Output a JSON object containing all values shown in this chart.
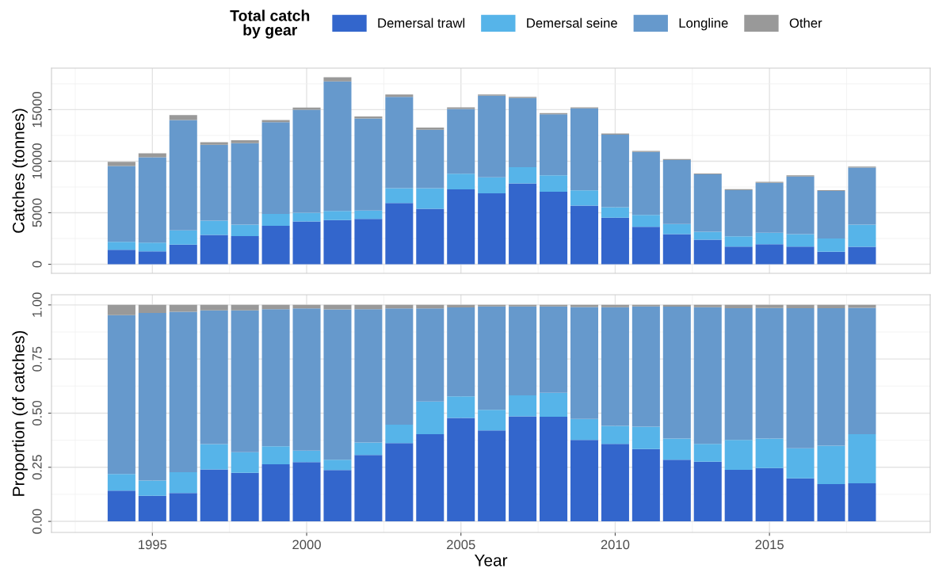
{
  "chart_data": [
    {
      "type": "bar",
      "stacked": true,
      "ylabel": "Catches (tonnes)",
      "legend_title": "Total catch\nby gear",
      "legend": "top",
      "grid": true,
      "tick_labels": "y",
      "x": [
        1994,
        1995,
        1996,
        1997,
        1998,
        1999,
        2000,
        2001,
        2002,
        2003,
        2004,
        2005,
        2006,
        2007,
        2008,
        2009,
        2010,
        2011,
        2012,
        2013,
        2014,
        2015,
        2016,
        2017,
        2018
      ],
      "xlim": [
        1991.73,
        2020.21
      ],
      "xticks": [
        1995,
        2000,
        2005,
        2010,
        2015
      ],
      "ylim": [
        -880,
        19030
      ],
      "yticks": [
        0,
        5000,
        10000,
        15000
      ],
      "series": [
        {
          "name": "Demersal trawl",
          "color": "#3366cc",
          "values": [
            1410,
            1260,
            1910,
            2850,
            2740,
            3740,
            4150,
            4290,
            4410,
            5940,
            5380,
            7260,
            6880,
            7840,
            7030,
            5690,
            4520,
            3640,
            2920,
            2390,
            1720,
            1950,
            1720,
            1220,
            1690
          ]
        },
        {
          "name": "Demersal seine",
          "color": "#56b4e9",
          "values": [
            770,
            830,
            1380,
            1390,
            1110,
            1140,
            850,
            890,
            800,
            1440,
            2000,
            1520,
            1570,
            1580,
            1600,
            1480,
            1020,
            1140,
            990,
            760,
            990,
            1110,
            1200,
            1290,
            2160
          ]
        },
        {
          "name": "Longline",
          "color": "#6699cc",
          "values": [
            7350,
            8290,
            10710,
            7350,
            7890,
            8910,
            10000,
            12560,
            8940,
            8860,
            5680,
            6290,
            7910,
            6700,
            5920,
            7960,
            7030,
            6120,
            6210,
            5570,
            4490,
            4840,
            5590,
            4600,
            5540
          ]
        },
        {
          "name": "Other",
          "color": "#999999",
          "values": [
            410,
            380,
            470,
            260,
            290,
            210,
            210,
            410,
            200,
            230,
            200,
            150,
            110,
            120,
            110,
            90,
            110,
            90,
            90,
            80,
            90,
            90,
            120,
            80,
            90
          ]
        }
      ]
    },
    {
      "type": "bar",
      "stacked": true,
      "xlabel": "Year",
      "ylabel": "Proportion (of catches)",
      "grid": true,
      "x": [
        1994,
        1995,
        1996,
        1997,
        1998,
        1999,
        2000,
        2001,
        2002,
        2003,
        2004,
        2005,
        2006,
        2007,
        2008,
        2009,
        2010,
        2011,
        2012,
        2013,
        2014,
        2015,
        2016,
        2017,
        2018
      ],
      "xlim": [
        1991.73,
        2020.21
      ],
      "xticks": [
        1995,
        2000,
        2005,
        2010,
        2015
      ],
      "ylim": [
        -0.051,
        1.047
      ],
      "yticks": [
        {
          "value": 0,
          "label": "0.00"
        },
        {
          "value": 0.25,
          "label": "0.25"
        },
        {
          "value": 0.5,
          "label": "0.50"
        },
        {
          "value": 0.75,
          "label": "0.75"
        },
        {
          "value": 1,
          "label": "1.00"
        }
      ],
      "series": [
        {
          "color": "#3366cc",
          "values": [
            0.142,
            0.118,
            0.131,
            0.24,
            0.224,
            0.264,
            0.274,
            0.237,
            0.307,
            0.362,
            0.403,
            0.478,
            0.42,
            0.485,
            0.483,
            0.376,
            0.358,
            0.334,
            0.285,
            0.276,
            0.238,
            0.246,
            0.199,
            0.172,
            0.176
          ]
        },
        {
          "color": "#56b4e9",
          "values": [
            0.077,
            0.071,
            0.096,
            0.117,
            0.096,
            0.083,
            0.053,
            0.048,
            0.057,
            0.085,
            0.151,
            0.1,
            0.095,
            0.097,
            0.111,
            0.097,
            0.083,
            0.104,
            0.098,
            0.082,
            0.138,
            0.137,
            0.139,
            0.178,
            0.227
          ]
        },
        {
          "color": "#6699cc",
          "values": [
            0.734,
            0.774,
            0.741,
            0.618,
            0.655,
            0.633,
            0.657,
            0.694,
            0.616,
            0.537,
            0.43,
            0.41,
            0.478,
            0.411,
            0.399,
            0.517,
            0.548,
            0.555,
            0.609,
            0.631,
            0.609,
            0.603,
            0.647,
            0.635,
            0.584
          ]
        },
        {
          "color": "#999999",
          "values": [
            0.047,
            0.037,
            0.032,
            0.025,
            0.025,
            0.02,
            0.016,
            0.021,
            0.02,
            0.016,
            0.016,
            0.012,
            0.007,
            0.007,
            0.007,
            0.01,
            0.011,
            0.007,
            0.008,
            0.011,
            0.015,
            0.014,
            0.015,
            0.015,
            0.013
          ]
        }
      ]
    }
  ]
}
